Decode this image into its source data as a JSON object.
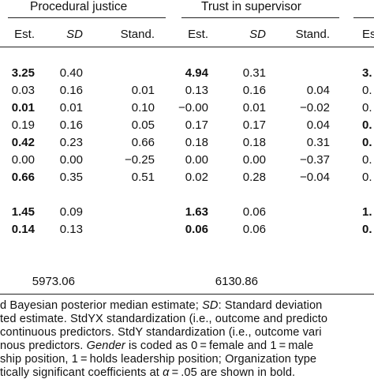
{
  "groups": [
    {
      "label": "Procedural justice"
    },
    {
      "label": "Trust in supervisor"
    }
  ],
  "col_headers": {
    "est": "Est.",
    "sd": "SD",
    "stand": "Stand.",
    "est_partial": "Es"
  },
  "rows": [
    {
      "pj": {
        "est": "3.25",
        "est_bold": true,
        "sd": "0.40",
        "stand": ""
      },
      "ts": {
        "est": "4.94",
        "est_bold": true,
        "sd": "0.31",
        "stand": ""
      },
      "x3": {
        "est": "3.",
        "est_bold": true
      }
    },
    {
      "pj": {
        "est": "0.03",
        "est_bold": false,
        "sd": "0.16",
        "stand": "0.01"
      },
      "ts": {
        "est": "0.13",
        "est_bold": false,
        "sd": "0.16",
        "stand": "0.04"
      },
      "x3": {
        "est": "0.",
        "est_bold": false
      }
    },
    {
      "pj": {
        "est": "0.01",
        "est_bold": true,
        "sd": "0.01",
        "stand": "0.10"
      },
      "ts": {
        "est": "−0.00",
        "est_bold": false,
        "sd": "0.01",
        "stand": "−0.02"
      },
      "x3": {
        "est": "0.",
        "est_bold": false
      }
    },
    {
      "pj": {
        "est": "0.19",
        "est_bold": false,
        "sd": "0.16",
        "stand": "0.05"
      },
      "ts": {
        "est": "0.17",
        "est_bold": false,
        "sd": "0.17",
        "stand": "0.04"
      },
      "x3": {
        "est": "0.",
        "est_bold": true
      }
    },
    {
      "pj": {
        "est": "0.42",
        "est_bold": true,
        "sd": "0.23",
        "stand": "0.66"
      },
      "ts": {
        "est": "0.18",
        "est_bold": false,
        "sd": "0.18",
        "stand": "0.31"
      },
      "x3": {
        "est": "0.",
        "est_bold": true
      }
    },
    {
      "pj": {
        "est": "0.00",
        "est_bold": false,
        "sd": "0.00",
        "stand": "−0.25"
      },
      "ts": {
        "est": "0.00",
        "est_bold": false,
        "sd": "0.00",
        "stand": "−0.37"
      },
      "x3": {
        "est": "0.",
        "est_bold": false
      }
    },
    {
      "pj": {
        "est": "0.66",
        "est_bold": true,
        "sd": "0.35",
        "stand": "0.51"
      },
      "ts": {
        "est": "0.02",
        "est_bold": false,
        "sd": "0.28",
        "stand": "−0.04"
      },
      "x3": {
        "est": "0.",
        "est_bold": false
      }
    },
    {
      "pj": {
        "est": "1.45",
        "est_bold": true,
        "sd": "0.09",
        "stand": ""
      },
      "ts": {
        "est": "1.63",
        "est_bold": true,
        "sd": "0.06",
        "stand": ""
      },
      "x3": {
        "est": "1.",
        "est_bold": true
      }
    },
    {
      "pj": {
        "est": "0.14",
        "est_bold": true,
        "sd": "0.13",
        "stand": ""
      },
      "ts": {
        "est": "0.06",
        "est_bold": true,
        "sd": "0.06",
        "stand": ""
      },
      "x3": {
        "est": "0.",
        "est_bold": true
      }
    }
  ],
  "fit": {
    "pj": "5973.06",
    "ts": "6130.86"
  },
  "notes": {
    "line1": {
      "a": "d Bayesian posterior median estimate; ",
      "b": "SD",
      "c": ": Standard deviation"
    },
    "line2": {
      "a": "ted estimate. StdYX standardization (i.e., outcome and predicto"
    },
    "line3": {
      "a": " continuous predictors. StdY standardization (i.e., outcome vari"
    },
    "line4": {
      "a": "nous predictors. ",
      "b": "Gender",
      "c": " is coded as 0 = female and 1 = male"
    },
    "line5": {
      "a": "ship position, 1 = holds leadership position; Organization type"
    },
    "line6": {
      "a": "tically significant coefficients at ",
      "b": "α",
      "c": " = .05 are shown in bold."
    }
  }
}
